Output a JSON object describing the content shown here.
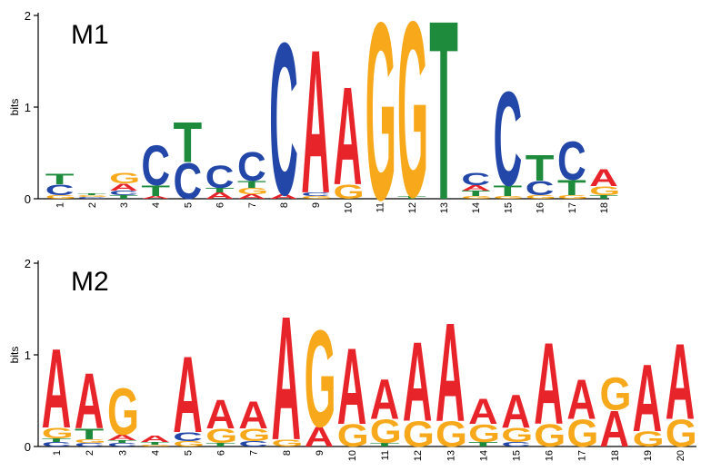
{
  "colors": {
    "A": "#e8242b",
    "C": "#2347a8",
    "G": "#f7a91b",
    "T": "#1d8a3c"
  },
  "chart_data": [
    {
      "type": "sequence-logo",
      "title": "M1",
      "ylabel": "bits",
      "ylim": [
        0,
        2
      ],
      "yticks": [
        "0",
        "1",
        "2"
      ],
      "positions": [
        "1",
        "2",
        "3",
        "4",
        "5",
        "6",
        "7",
        "8",
        "9",
        "10",
        "11",
        "12",
        "13",
        "14",
        "15",
        "16",
        "17",
        "18"
      ],
      "stacks": [
        [
          [
            "G",
            0.04
          ],
          [
            "C",
            0.12
          ],
          [
            "T",
            0.12
          ]
        ],
        [
          [
            "C",
            0.02
          ],
          [
            "G",
            0.02
          ],
          [
            "T",
            0.02
          ]
        ],
        [
          [
            "T",
            0.04
          ],
          [
            "C",
            0.05
          ],
          [
            "A",
            0.08
          ],
          [
            "G",
            0.12
          ]
        ],
        [
          [
            "A",
            0.03
          ],
          [
            "T",
            0.12
          ],
          [
            "C",
            0.45
          ]
        ],
        [
          [
            "C",
            0.4
          ],
          [
            "T",
            0.45
          ]
        ],
        [
          [
            "A",
            0.07
          ],
          [
            "T",
            0.05
          ],
          [
            "C",
            0.25
          ]
        ],
        [
          [
            "A",
            0.05
          ],
          [
            "G",
            0.07
          ],
          [
            "T",
            0.08
          ],
          [
            "C",
            0.32
          ]
        ],
        [
          [
            "A",
            0.05
          ],
          [
            "C",
            1.7
          ]
        ],
        [
          [
            "G",
            0.03
          ],
          [
            "C",
            0.04
          ],
          [
            "A",
            1.6
          ]
        ],
        [
          [
            "G",
            0.16
          ],
          [
            "A",
            1.09
          ]
        ],
        [
          [
            "G",
            1.98
          ]
        ],
        [
          [
            "T",
            0.03
          ],
          [
            "G",
            1.96
          ]
        ],
        [
          [
            "T",
            2.0
          ]
        ],
        [
          [
            "G",
            0.03
          ],
          [
            "T",
            0.06
          ],
          [
            "A",
            0.06
          ],
          [
            "C",
            0.14
          ]
        ],
        [
          [
            "G",
            0.03
          ],
          [
            "T",
            0.12
          ],
          [
            "C",
            1.05
          ]
        ],
        [
          [
            "G",
            0.04
          ],
          [
            "C",
            0.16
          ],
          [
            "T",
            0.29
          ]
        ],
        [
          [
            "G",
            0.04
          ],
          [
            "T",
            0.17
          ],
          [
            "C",
            0.43
          ]
        ],
        [
          [
            "T",
            0.04
          ],
          [
            "G",
            0.1
          ],
          [
            "A",
            0.19
          ]
        ]
      ]
    },
    {
      "type": "sequence-logo",
      "title": "M2",
      "ylabel": "bits",
      "ylim": [
        0,
        2
      ],
      "yticks": [
        "0",
        "1",
        "2"
      ],
      "positions": [
        "1",
        "2",
        "3",
        "4",
        "5",
        "6",
        "7",
        "8",
        "9",
        "10",
        "11",
        "12",
        "13",
        "14",
        "15",
        "16",
        "17",
        "18",
        "19",
        "20"
      ],
      "stacks": [
        [
          [
            "C",
            0.05
          ],
          [
            "T",
            0.04
          ],
          [
            "G",
            0.12
          ],
          [
            "A",
            0.88
          ]
        ],
        [
          [
            "C",
            0.04
          ],
          [
            "G",
            0.04
          ],
          [
            "T",
            0.12
          ],
          [
            "A",
            0.62
          ]
        ],
        [
          [
            "C",
            0.04
          ],
          [
            "T",
            0.03
          ],
          [
            "A",
            0.06
          ],
          [
            "G",
            0.52
          ]
        ],
        [
          [
            "G",
            0.02
          ],
          [
            "T",
            0.03
          ],
          [
            "A",
            0.07
          ]
        ],
        [
          [
            "G",
            0.06
          ],
          [
            "C",
            0.1
          ],
          [
            "A",
            0.85
          ]
        ],
        [
          [
            "T",
            0.04
          ],
          [
            "G",
            0.16
          ],
          [
            "A",
            0.32
          ]
        ],
        [
          [
            "C",
            0.06
          ],
          [
            "G",
            0.14
          ],
          [
            "A",
            0.3
          ]
        ],
        [
          [
            "G",
            0.08
          ],
          [
            "A",
            1.38
          ]
        ],
        [
          [
            "A",
            0.22
          ],
          [
            "G",
            1.08
          ]
        ],
        [
          [
            "G",
            0.25
          ],
          [
            "A",
            0.85
          ]
        ],
        [
          [
            "T",
            0.04
          ],
          [
            "G",
            0.26
          ],
          [
            "A",
            0.45
          ]
        ],
        [
          [
            "G",
            0.28
          ],
          [
            "A",
            0.88
          ]
        ],
        [
          [
            "G",
            0.28
          ],
          [
            "A",
            1.1
          ]
        ],
        [
          [
            "T",
            0.05
          ],
          [
            "G",
            0.2
          ],
          [
            "A",
            0.28
          ]
        ],
        [
          [
            "C",
            0.05
          ],
          [
            "G",
            0.16
          ],
          [
            "A",
            0.37
          ]
        ],
        [
          [
            "G",
            0.25
          ],
          [
            "A",
            0.91
          ]
        ],
        [
          [
            "G",
            0.3
          ],
          [
            "A",
            0.44
          ]
        ],
        [
          [
            "A",
            0.4
          ],
          [
            "G",
            0.36
          ]
        ],
        [
          [
            "G",
            0.17
          ],
          [
            "A",
            0.75
          ]
        ],
        [
          [
            "G",
            0.3
          ],
          [
            "A",
            0.84
          ]
        ]
      ]
    }
  ]
}
